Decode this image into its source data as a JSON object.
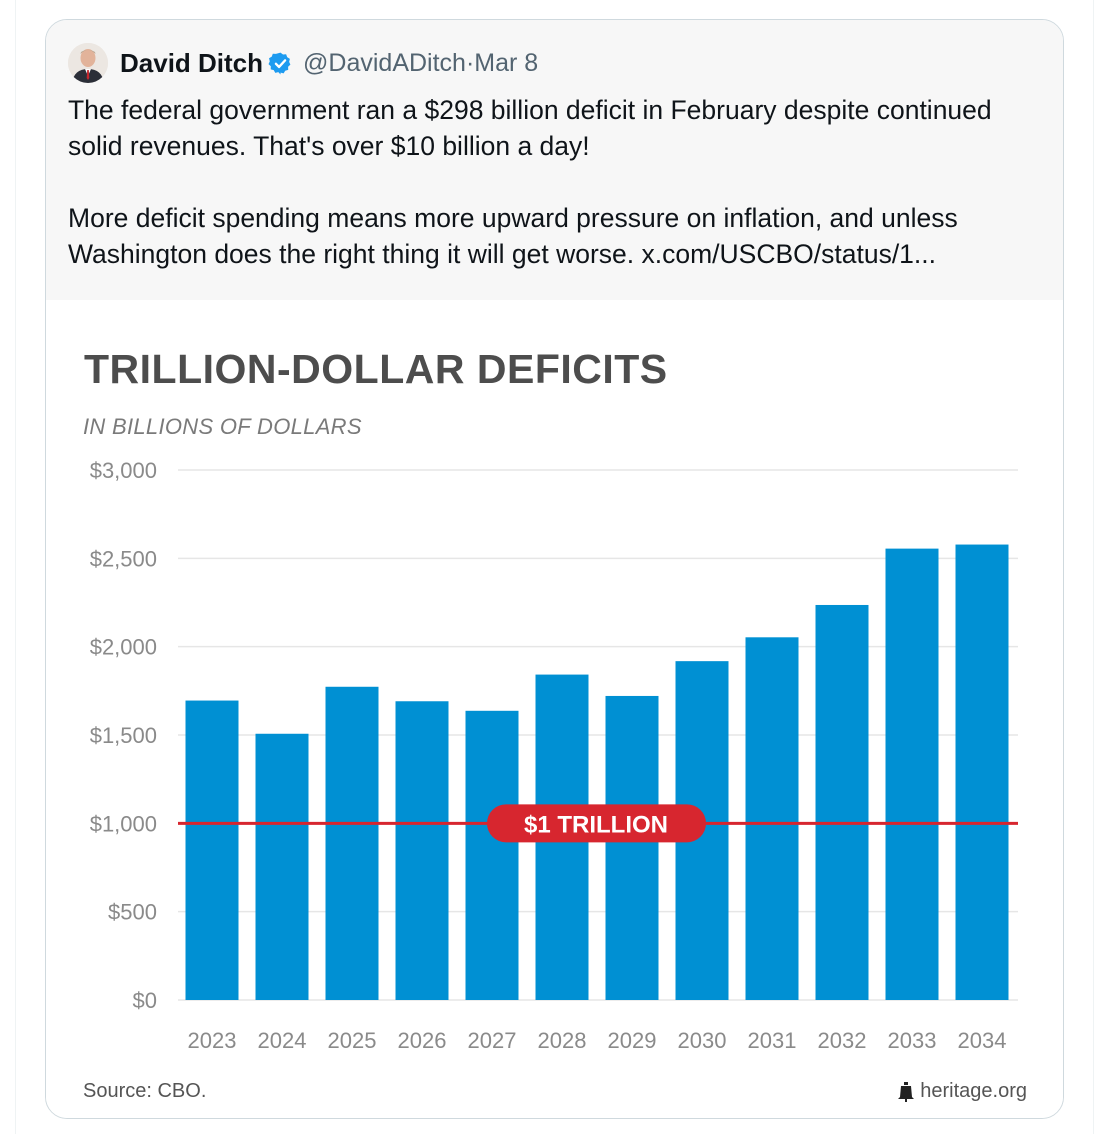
{
  "tweet": {
    "author_name": "David Ditch",
    "handle": "@DavidADitch",
    "separator": "·",
    "date": "Mar 8",
    "text_line1": "The federal government ran a $298 billion deficit in February despite continued",
    "text_line2": "solid revenues. That's over $10 billion a day!",
    "text_line3": "More deficit spending means more upward pressure on inflation, and unless",
    "text_line4": "Washington does the right thing it will get worse.  x.com/USCBO/status/1..."
  },
  "colors": {
    "bar": "#0090d3",
    "threshold": "#d7262f",
    "verified": "#1d9bf0",
    "title": "#4d4d4d"
  },
  "chart_data": {
    "type": "bar",
    "title": "TRILLION-DOLLAR DEFICITS",
    "subtitle": "IN BILLIONS OF DOLLARS",
    "categories": [
      "2023",
      "2024",
      "2025",
      "2026",
      "2027",
      "2028",
      "2029",
      "2030",
      "2031",
      "2032",
      "2033",
      "2034"
    ],
    "values": [
      1695,
      1507,
      1773,
      1691,
      1637,
      1842,
      1721,
      1918,
      2053,
      2236,
      2555,
      2578
    ],
    "ylim": [
      0,
      3000
    ],
    "yticks": [
      0,
      500,
      1000,
      1500,
      2000,
      2500,
      3000
    ],
    "ytick_labels": [
      "$0",
      "$500",
      "$1,000",
      "$1,500",
      "$2,000",
      "$2,500",
      "$3,000"
    ],
    "grid": true,
    "threshold": {
      "value": 1000,
      "label": "$1 TRILLION"
    },
    "source": "Source: CBO.",
    "brand": "heritage.org"
  }
}
